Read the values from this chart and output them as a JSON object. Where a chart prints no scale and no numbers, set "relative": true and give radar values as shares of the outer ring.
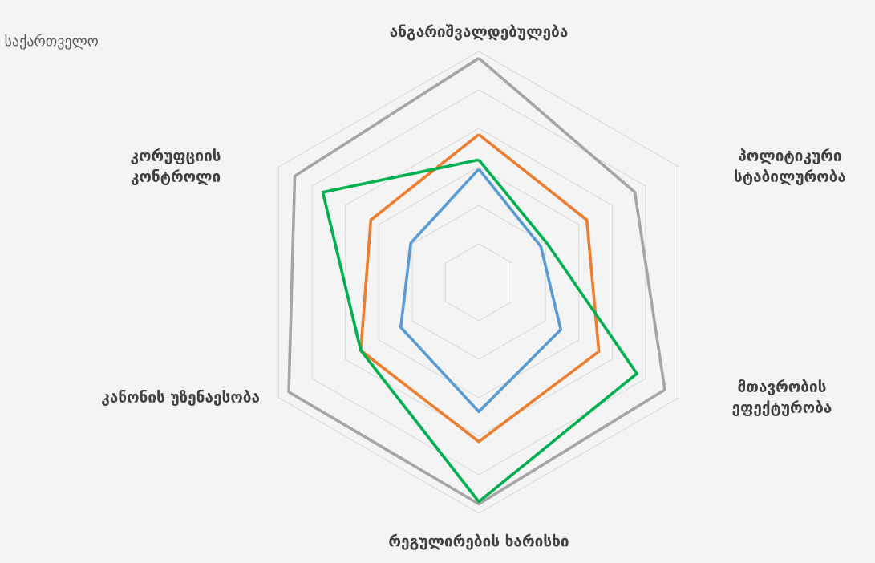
{
  "chart_data": {
    "type": "radar",
    "subtitle": "საქართველო",
    "categories": [
      "ანგარიშვალდებულება",
      "პოლიტიკური სტაბილურობა",
      "მთავრობის ეფექტურობა",
      "რეგულირების ხარისხი",
      "კანონის უზენაესობა",
      "კორუფციის კონტროლი"
    ],
    "relative": true,
    "grid": true,
    "series": [
      {
        "color": "#a5a5a5",
        "values": [
          0.97,
          0.78,
          0.93,
          0.96,
          0.95,
          0.92
        ]
      },
      {
        "color": "#ed7d31",
        "values": [
          0.64,
          0.54,
          0.6,
          0.69,
          0.59,
          0.54
        ]
      },
      {
        "color": "#5b9bd5",
        "values": [
          0.49,
          0.31,
          0.41,
          0.56,
          0.39,
          0.34
        ]
      },
      {
        "color": "#00b050",
        "values": [
          0.53,
          0.34,
          0.79,
          0.95,
          0.59,
          0.78
        ]
      }
    ]
  }
}
